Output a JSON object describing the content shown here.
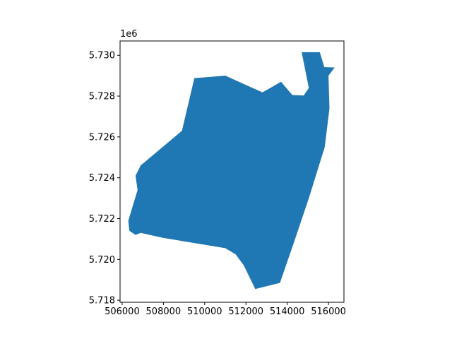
{
  "chart_data": {
    "type": "polygon",
    "title": "",
    "xlabel": "",
    "ylabel": "",
    "y_offset_label": "1e6",
    "xlim": [
      505900,
      516750
    ],
    "ylim": [
      5717900,
      5730700
    ],
    "grid": false,
    "legend": "none",
    "fill_color": "#1f77b4",
    "x_ticks": [
      {
        "value": 506000,
        "label": "506000"
      },
      {
        "value": 508000,
        "label": "508000"
      },
      {
        "value": 510000,
        "label": "510000"
      },
      {
        "value": 512000,
        "label": "512000"
      },
      {
        "value": 514000,
        "label": "514000"
      },
      {
        "value": 516000,
        "label": "516000"
      }
    ],
    "y_ticks": [
      {
        "value": 5718000,
        "label": "5.718"
      },
      {
        "value": 5720000,
        "label": "5.720"
      },
      {
        "value": 5722000,
        "label": "5.722"
      },
      {
        "value": 5724000,
        "label": "5.724"
      },
      {
        "value": 5726000,
        "label": "5.726"
      },
      {
        "value": 5728000,
        "label": "5.728"
      },
      {
        "value": 5730000,
        "label": "5.730"
      }
    ],
    "polygon": [
      [
        514700,
        5730150
      ],
      [
        515580,
        5730150
      ],
      [
        515800,
        5729420
      ],
      [
        516300,
        5729400
      ],
      [
        516000,
        5729000
      ],
      [
        516050,
        5727400
      ],
      [
        515820,
        5725500
      ],
      [
        515050,
        5723000
      ],
      [
        514300,
        5720750
      ],
      [
        513650,
        5718850
      ],
      [
        512450,
        5718550
      ],
      [
        511900,
        5719700
      ],
      [
        511500,
        5720250
      ],
      [
        511000,
        5720550
      ],
      [
        508000,
        5721050
      ],
      [
        506900,
        5721300
      ],
      [
        506650,
        5721200
      ],
      [
        506350,
        5721400
      ],
      [
        506300,
        5721900
      ],
      [
        506750,
        5723400
      ],
      [
        506650,
        5724100
      ],
      [
        506900,
        5724600
      ],
      [
        508900,
        5726300
      ],
      [
        509500,
        5728880
      ],
      [
        511000,
        5729000
      ],
      [
        512800,
        5728180
      ],
      [
        513700,
        5728700
      ],
      [
        514250,
        5728050
      ],
      [
        514800,
        5728030
      ],
      [
        515050,
        5728400
      ],
      [
        514700,
        5730150
      ]
    ]
  }
}
